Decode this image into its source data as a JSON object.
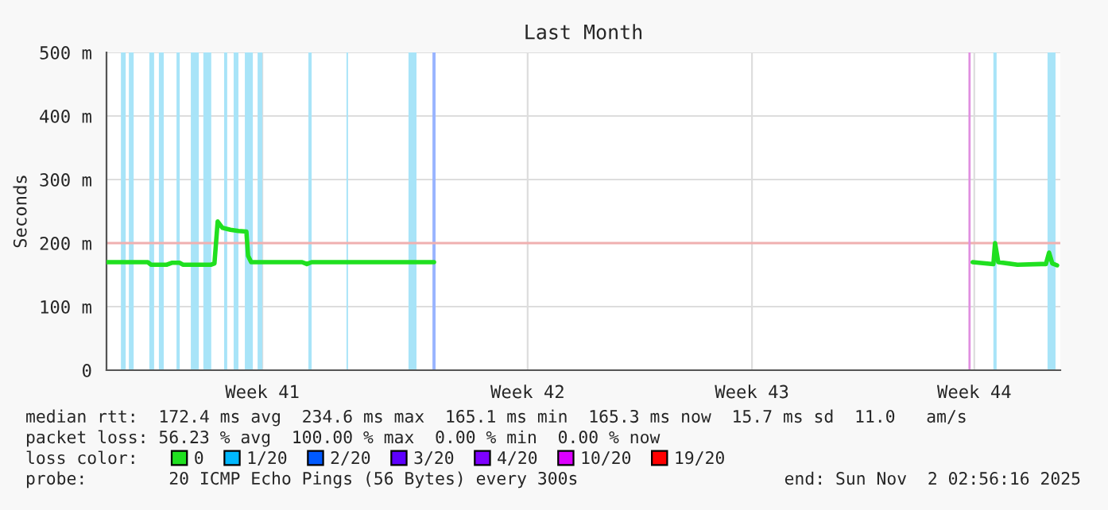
{
  "chart_data": {
    "type": "line",
    "title": "Last Month",
    "ylabel": "Seconds",
    "legend_title": "loss color:",
    "legend": "bottom",
    "grid": true,
    "marker": "none",
    "line_style": "solid",
    "xlim": [
      "2025-10-03T06:30",
      "2025-11-02T02:56"
    ],
    "ylim": [
      0,
      500
    ],
    "xticks": [
      {
        "value": "2025-10-08T03:35",
        "label": "Week 41"
      },
      {
        "value": "2025-10-16T10:50",
        "label": "Week 42"
      },
      {
        "value": "2025-10-23T11:20",
        "label": "Week 43"
      },
      {
        "value": "2025-10-30T10:20",
        "label": "Week 44"
      }
    ],
    "yticks": [
      0,
      {
        "value": 100,
        "label": "100 m"
      },
      {
        "value": 200,
        "label": "200 m"
      },
      {
        "value": 300,
        "label": "300 m"
      },
      {
        "value": 400,
        "label": "400 m"
      },
      {
        "value": 500,
        "label": "500 m"
      }
    ],
    "series": [
      {
        "name": "0",
        "color": "#20e020",
        "x": [
          "2025-10-03T06:30",
          "2025-10-04T13:30",
          "2025-10-04T15:50",
          "2025-10-05T03:50",
          "2025-10-05T07:30",
          "2025-10-05T13:30",
          "2025-10-05T15:50",
          "2025-10-06T13:10",
          "2025-10-06T15:35",
          "2025-10-06T18:00",
          "2025-10-06T21:35",
          "2025-10-07T03:35",
          "2025-10-07T09:35",
          "2025-10-07T15:35",
          "2025-10-07T16:50",
          "2025-10-07T19:10",
          "2025-10-09T09:25",
          "2025-10-09T13:00",
          "2025-10-09T16:35",
          "2025-10-13T12:30",
          "2025-10-13T13:40",
          "2025-10-30T09:05",
          "2025-10-31T00:40",
          "2025-10-31T01:55",
          "2025-10-31T04:20",
          "2025-10-31T18:45",
          "2025-11-01T12:30",
          "2025-11-01T16:05",
          "2025-11-01T18:30",
          "2025-11-01T20:55",
          "2025-11-02T00:30"
        ],
        "values": [
          170,
          170,
          166,
          166,
          169,
          169,
          166,
          166,
          168,
          234,
          224,
          221,
          219,
          218,
          180,
          170,
          170,
          167,
          170,
          170,
          null,
          170,
          167,
          200,
          170,
          166,
          167,
          167,
          185,
          168,
          165
        ]
      },
      {
        "name": "1/20",
        "color": "#00b8ff"
      },
      {
        "name": "2/20",
        "color": "#0059ff"
      },
      {
        "name": "3/20",
        "color": "#5e00ff"
      },
      {
        "name": "4/20",
        "color": "#7e00ff"
      },
      {
        "name": "10/20",
        "color": "#dd00ff"
      },
      {
        "name": "19/20",
        "color": "#ff0000"
      }
    ],
    "bands": [
      {
        "axis": "x",
        "from": "2025-10-03T17:20",
        "to": "2025-10-03T20:55",
        "color": "#a8e4f8"
      },
      {
        "axis": "x",
        "from": "2025-10-03T23:18",
        "to": "2025-10-04T02:54",
        "color": "#a8e4f8"
      },
      {
        "axis": "x",
        "from": "2025-10-04T14:40",
        "to": "2025-10-04T18:15",
        "color": "#a8e4f8"
      },
      {
        "axis": "x",
        "from": "2025-10-04T21:50",
        "to": "2025-10-05T01:30",
        "color": "#a8e4f8"
      },
      {
        "axis": "x",
        "from": "2025-10-05T11:05",
        "to": "2025-10-05T13:30",
        "color": "#a8e4f8"
      },
      {
        "axis": "x",
        "from": "2025-10-05T21:50",
        "to": "2025-10-06T03:50",
        "color": "#a8e4f8"
      },
      {
        "axis": "x",
        "from": "2025-10-06T07:15",
        "to": "2025-10-06T13:10",
        "color": "#a8e4f8"
      },
      {
        "axis": "x",
        "from": "2025-10-06T22:50",
        "to": "2025-10-07T01:10",
        "color": "#a8e4f8"
      },
      {
        "axis": "x",
        "from": "2025-10-07T06:00",
        "to": "2025-10-07T09:35",
        "color": "#a8e4f8"
      },
      {
        "axis": "x",
        "from": "2025-10-07T14:25",
        "to": "2025-10-07T20:25",
        "color": "#a8e4f8"
      },
      {
        "axis": "x",
        "from": "2025-10-08T00:00",
        "to": "2025-10-08T03:35",
        "color": "#a8e4f8"
      },
      {
        "axis": "x",
        "from": "2025-10-09T14:10",
        "to": "2025-10-09T16:35",
        "color": "#a8e4f8"
      },
      {
        "axis": "x",
        "from": "2025-10-10T18:45",
        "to": "2025-10-10T19:55",
        "color": "#a8e4f8"
      },
      {
        "axis": "x",
        "from": "2025-10-12T17:20",
        "to": "2025-10-12T23:20",
        "color": "#a8e4f8"
      },
      {
        "axis": "x",
        "from": "2025-10-13T11:20",
        "to": "2025-10-13T13:40",
        "color": "#99b4ff"
      },
      {
        "axis": "x",
        "from": "2025-10-31T00:40",
        "to": "2025-10-31T03:05",
        "color": "#a8e4f8"
      },
      {
        "axis": "x",
        "from": "2025-11-01T17:20",
        "to": "2025-11-01T23:20",
        "color": "#a8e4f8"
      }
    ],
    "ref_lines": [
      {
        "axis": "y",
        "value": 200,
        "color": "#f0b0b0",
        "line_style": "solid"
      },
      {
        "axis": "x",
        "value": "2025-10-30T06:45",
        "color": "#e090e0",
        "line_style": "solid"
      }
    ],
    "annotations": [
      "median rtt:  172.4 ms avg  234.6 ms max  165.1 ms min  165.3 ms now  15.7 ms sd  11.0   am/s",
      "packet loss: 56.23 % avg  100.00 % max  0.00 % min  0.00 % now",
      "probe:        20 ICMP Echo Pings (56 Bytes) every 300s",
      "end: Sun Nov  2 02:56:16 2025"
    ]
  }
}
